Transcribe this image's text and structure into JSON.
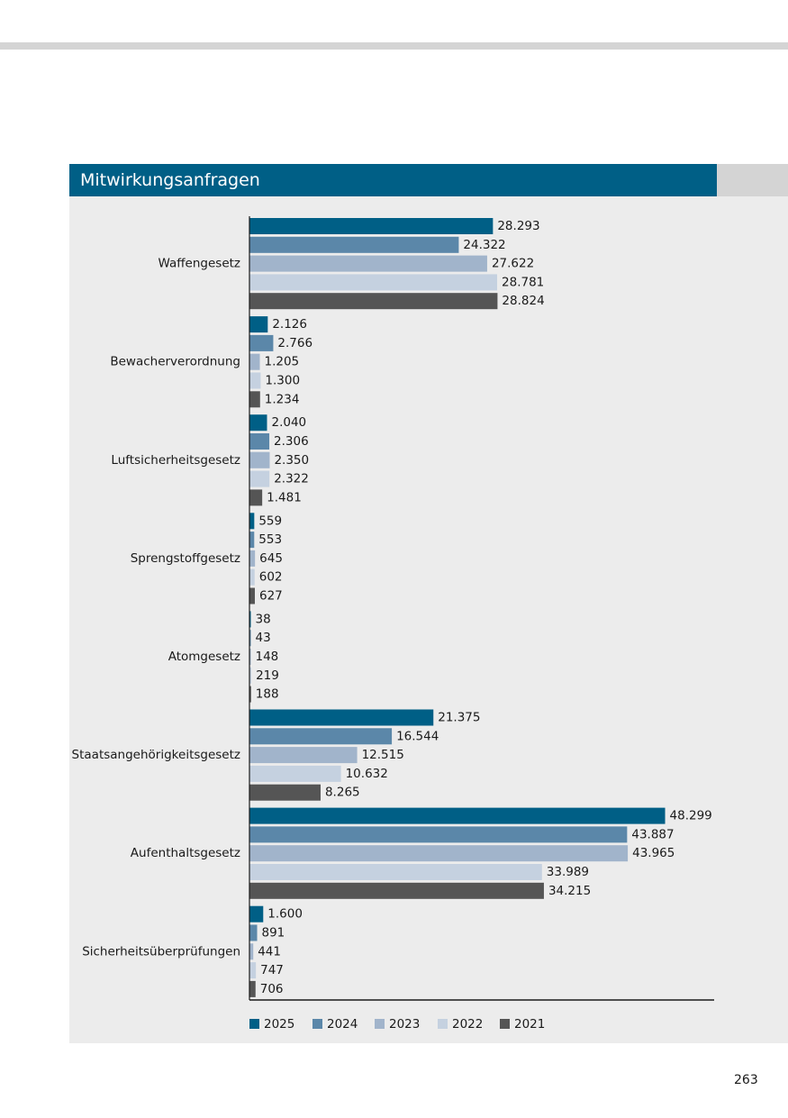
{
  "header": {
    "title": "Mitwirkungsanfragen"
  },
  "page_number": "263",
  "chart_data": {
    "type": "bar",
    "orientation": "horizontal",
    "title": "Mitwirkungsanfragen",
    "categories": [
      "Waffengesetz",
      "Bewacherverordnung",
      "Luftsicherheitsgesetz",
      "Sprengstoffgesetz",
      "Atomgesetz",
      "Staatsangehörigkeitsgesetz",
      "Aufenthaltsgesetz",
      "Sicherheitsüberprüfungen"
    ],
    "series": [
      {
        "name": "2025",
        "color": "#005f86",
        "values": [
          28293,
          2126,
          2040,
          559,
          38,
          21375,
          48299,
          1600
        ],
        "labels": [
          "28.293",
          "2.126",
          "2.040",
          "559",
          "38",
          "21.375",
          "48.299",
          "1.600"
        ]
      },
      {
        "name": "2024",
        "color": "#5b87a9",
        "values": [
          24322,
          2766,
          2306,
          553,
          43,
          16544,
          43887,
          891
        ],
        "labels": [
          "24.322",
          "2.766",
          "2.306",
          "553",
          "43",
          "16.544",
          "43.887",
          "891"
        ]
      },
      {
        "name": "2023",
        "color": "#a1b4cb",
        "values": [
          27622,
          1205,
          2350,
          645,
          148,
          12515,
          43965,
          441
        ],
        "labels": [
          "27.622",
          "1.205",
          "2.350",
          "645",
          "148",
          "12.515",
          "43.965",
          "441"
        ]
      },
      {
        "name": "2022",
        "color": "#c5d1e0",
        "values": [
          28781,
          1300,
          2322,
          602,
          219,
          10632,
          33989,
          747
        ],
        "labels": [
          "28.781",
          "1.300",
          "2.322",
          "602",
          "219",
          "10.632",
          "33.989",
          "747"
        ]
      },
      {
        "name": "2021",
        "color": "#555555",
        "values": [
          28824,
          1234,
          1481,
          627,
          188,
          8265,
          34215,
          706
        ],
        "labels": [
          "28.824",
          "1.234",
          "1.481",
          "627",
          "188",
          "8.265",
          "34.215",
          "706"
        ]
      }
    ],
    "xlim": [
      0,
      54000
    ],
    "legend": "bottom-left",
    "grid": false
  }
}
